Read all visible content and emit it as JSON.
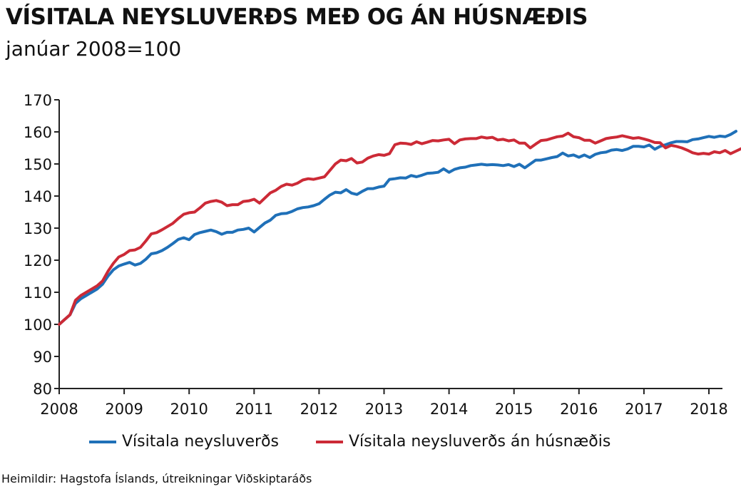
{
  "chart_data": {
    "type": "line",
    "title": "VÍSITALA NEYSLUVERÐS MEÐ OG ÁN HÚSNÆÐIS",
    "subtitle": "janúar 2008=100",
    "xlabel": "",
    "ylabel": "",
    "x_tick_labels": [
      "2008",
      "2009",
      "2010",
      "2011",
      "2012",
      "2013",
      "2014",
      "2015",
      "2016",
      "2017",
      "2018"
    ],
    "y_tick_labels": [
      "80",
      "90",
      "100",
      "110",
      "120",
      "130",
      "140",
      "150",
      "160",
      "170"
    ],
    "ylim": [
      80,
      170
    ],
    "xlim": [
      "2008-01",
      "2018-04"
    ],
    "grid": false,
    "legend_position": "bottom",
    "source": "Heimildir: Hagstofa Íslands, útreikningar Viðskiptaráðs",
    "series": [
      {
        "name": "Vísitala neysluverðs",
        "color": "#1f70b8",
        "start": "2008-01",
        "frequency": "monthly",
        "values": [
          100,
          101.5,
          103,
          106.5,
          108,
          109,
          110,
          111,
          112.5,
          115,
          117,
          118.2,
          118.8,
          119.3,
          118.5,
          119,
          120.3,
          122,
          122.3,
          123,
          124,
          125.2,
          126.5,
          127,
          126.4,
          128,
          128.6,
          129,
          129.4,
          128.9,
          128.1,
          128.7,
          128.7,
          129.4,
          129.6,
          130,
          128.8,
          130.2,
          131.6,
          132.5,
          134,
          134.5,
          134.6,
          135.2,
          136,
          136.4,
          136.6,
          137,
          137.6,
          139,
          140.3,
          141.2,
          141,
          142,
          140.9,
          140.5,
          141.5,
          142.3,
          142.3,
          142.8,
          143.1,
          145.2,
          145.4,
          145.7,
          145.6,
          146.4,
          146,
          146.5,
          147.1,
          147.2,
          147.4,
          148.5,
          147.4,
          148.3,
          148.8,
          149,
          149.5,
          149.7,
          149.9,
          149.7,
          149.8,
          149.7,
          149.5,
          149.8,
          149.2,
          149.9,
          148.8,
          150,
          151.2,
          151.2,
          151.6,
          152,
          152.3,
          153.4,
          152.5,
          152.8,
          152.1,
          152.8,
          152,
          153,
          153.5,
          153.7,
          154.3,
          154.5,
          154.2,
          154.7,
          155.5,
          155.5,
          155.3,
          155.9,
          154.6,
          155.5,
          156,
          156.6,
          157,
          157,
          156.9,
          157.6,
          157.8,
          158.2,
          158.6,
          158.3,
          158.7,
          158.5,
          159.2,
          160.2
        ]
      },
      {
        "name": "Vísitala neysluverðs án húsnæðis",
        "color": "#cc2a36",
        "start": "2008-01",
        "frequency": "monthly",
        "values": [
          100,
          101.5,
          103,
          107.5,
          109,
          110,
          111,
          112,
          113.5,
          116.5,
          119,
          121,
          121.8,
          123,
          123.2,
          124,
          126,
          128.2,
          128.6,
          129.5,
          130.5,
          131.5,
          133,
          134.3,
          134.8,
          135,
          136.3,
          137.8,
          138.3,
          138.6,
          138.1,
          137,
          137.3,
          137.3,
          138.3,
          138.5,
          139,
          137.8,
          139.4,
          141,
          141.8,
          143,
          143.7,
          143.4,
          144,
          145,
          145.4,
          145.2,
          145.6,
          146,
          148,
          150,
          151.2,
          151,
          151.7,
          150.3,
          150.6,
          151.8,
          152.5,
          152.9,
          152.7,
          153.2,
          156,
          156.5,
          156.4,
          156.1,
          156.9,
          156.3,
          156.8,
          157.3,
          157.2,
          157.5,
          157.7,
          156.3,
          157.5,
          157.8,
          157.9,
          157.9,
          158.4,
          158.1,
          158.3,
          157.5,
          157.7,
          157.2,
          157.5,
          156.5,
          156.5,
          155,
          156.2,
          157.3,
          157.5,
          158,
          158.5,
          158.7,
          159.6,
          158.5,
          158.2,
          157.4,
          157.4,
          156.5,
          157.2,
          157.9,
          158.2,
          158.4,
          158.8,
          158.4,
          158,
          158.2,
          157.8,
          157.3,
          156.7,
          156.6,
          155,
          155.8,
          155.5,
          155,
          154.3,
          153.5,
          153.1,
          153.3,
          153.1,
          153.8,
          153.5,
          154.2,
          153.2,
          154,
          154.8
        ]
      }
    ]
  }
}
